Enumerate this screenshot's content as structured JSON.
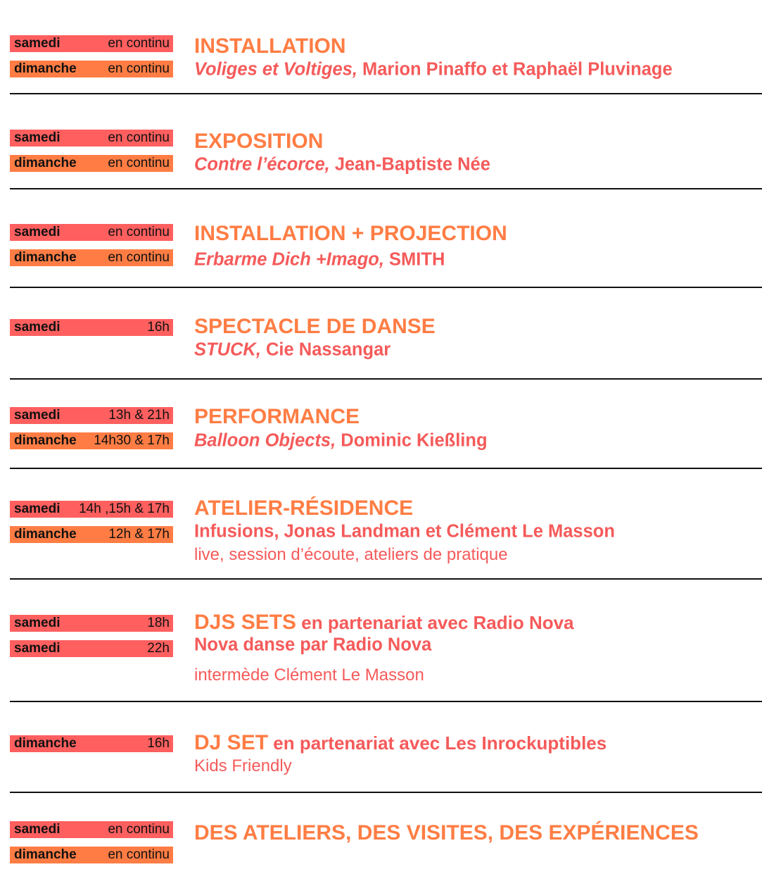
{
  "colors": {
    "samedi_badge": "#ff5f5f",
    "dimanche_badge": "#ff7d44",
    "title": "#ff7d44",
    "subtitle": "#f55a5a"
  },
  "events": [
    {
      "badges": [
        {
          "day": "samedi",
          "time": "en continu",
          "color": "red"
        },
        {
          "day": "dimanche",
          "time": "en continu",
          "color": "orange"
        }
      ],
      "title": "INSTALLATION",
      "subtitle_italic": "Voliges et Voltiges,",
      "subtitle": " Marion Pinaffo et Raphaël Pluvinage"
    },
    {
      "badges": [
        {
          "day": "samedi",
          "time": "en continu",
          "color": "red"
        },
        {
          "day": "dimanche",
          "time": "en continu",
          "color": "orange"
        }
      ],
      "title": "EXPOSITION",
      "subtitle_italic": "Contre l’écorce,",
      "subtitle": " Jean-Baptiste Née"
    },
    {
      "badges": [
        {
          "day": "samedi",
          "time": "en continu",
          "color": "red"
        },
        {
          "day": "dimanche",
          "time": "en continu",
          "color": "orange"
        }
      ],
      "title": "INSTALLATION + PROJECTION",
      "subtitle_italic": "Erbarme Dich +Imago,",
      "subtitle": " SMITH"
    },
    {
      "badges": [
        {
          "day": "samedi",
          "time": "16h",
          "color": "red"
        }
      ],
      "title": "SPECTACLE DE DANSE",
      "subtitle_italic": "STUCK,",
      "subtitle": " Cie Nassangar"
    },
    {
      "badges": [
        {
          "day": "samedi",
          "time": "13h & 21h",
          "color": "red"
        },
        {
          "day": "dimanche",
          "time": "14h30 & 17h",
          "color": "orange"
        }
      ],
      "title": "PERFORMANCE",
      "subtitle_italic": "Balloon Objects,",
      "subtitle": " Dominic Kießling"
    },
    {
      "badges": [
        {
          "day": "samedi",
          "time": "14h ,15h & 17h",
          "color": "red"
        },
        {
          "day": "dimanche",
          "time": "12h & 17h",
          "color": "orange"
        }
      ],
      "title": "ATELIER-RÉSIDENCE",
      "subtitle": "Infusions, Jonas Landman et Clément Le Masson",
      "description": "live, session d’écoute, ateliers de pratique"
    },
    {
      "badges": [
        {
          "day": "samedi",
          "time": "18h",
          "color": "red"
        },
        {
          "day": "samedi",
          "time": "22h",
          "color": "red"
        }
      ],
      "title": "DJS SETS",
      "title_extra": " en partenariat avec Radio Nova",
      "subtitle": "Nova danse par Radio Nova",
      "description": "intermède Clément Le Masson"
    },
    {
      "badges": [
        {
          "day": "dimanche",
          "time": "16h",
          "color": "red"
        }
      ],
      "title": "DJ SET",
      "title_extra": " en partenariat avec Les Inrockuptibles",
      "description": "Kids Friendly"
    },
    {
      "badges": [
        {
          "day": "samedi",
          "time": "en continu",
          "color": "red"
        },
        {
          "day": "dimanche",
          "time": "en continu",
          "color": "orange"
        }
      ],
      "title": "DES ATELIERS, DES VISITES, DES EXPÉRIENCES"
    }
  ]
}
